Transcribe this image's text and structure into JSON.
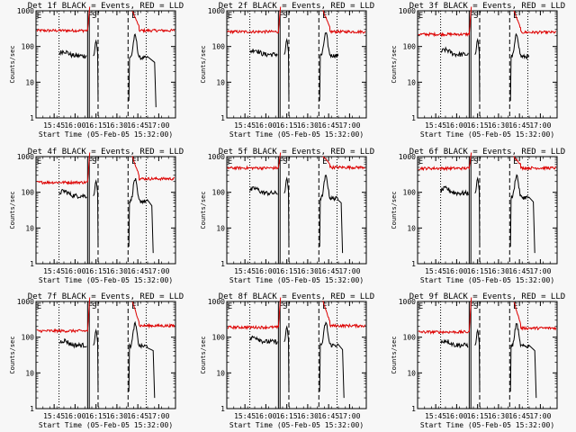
{
  "chart_data": {
    "type": "line",
    "layout": "3x3 grid",
    "x_axis": {
      "label": "Start Time (05-Feb-05 15:32:00)",
      "tick_labels": [
        "15:45",
        "16:00",
        "16:15",
        "16:30",
        "16:45",
        "17:00"
      ],
      "tick_minutes_after_15": [
        45,
        60,
        75,
        90,
        105,
        120
      ],
      "xlim_minutes_after_15": [
        32,
        132
      ]
    },
    "y_axis": {
      "label": "Counts/sec",
      "scale": "log",
      "ylim": [
        1,
        1000
      ],
      "tick_labels": [
        "1",
        "10",
        "100",
        "1000"
      ],
      "tick_values": [
        1,
        10,
        100,
        1000
      ]
    },
    "series_legend": "BLACK = Events, RED = LLD",
    "series_colors": {
      "events": "#000000",
      "lld": "#dd0000"
    },
    "markers": {
      "lines": [
        {
          "minute": 48.5,
          "style": "dotted"
        },
        {
          "minute": 69.0,
          "style": "solid"
        },
        {
          "minute": 70.2,
          "style": "solid"
        },
        {
          "minute": 76.5,
          "style": "dashed"
        },
        {
          "minute": 98.0,
          "style": "dashed"
        },
        {
          "minute": 111.0,
          "style": "dotted"
        }
      ],
      "labels": [
        {
          "text": "E",
          "minute": 32.5
        },
        {
          "text": "F",
          "minute": 69.2
        },
        {
          "text": "S",
          "minute": 72.0
        },
        {
          "text": "E",
          "minute": 100.5
        }
      ]
    },
    "panels": [
      {
        "title": "Det 1f BLACK = Events, RED = LLD",
        "lld_pre": 280,
        "lld_post": 280,
        "ev_pre": 55,
        "ev_post": 60,
        "low": [
          118
        ]
      },
      {
        "title": "Det 2f BLACK = Events, RED = LLD",
        "lld_pre": 260,
        "lld_post": 260,
        "ev_pre": 60,
        "ev_post": 70,
        "low": []
      },
      {
        "title": "Det 3f BLACK = Events, RED = LLD",
        "lld_pre": 220,
        "lld_post": 250,
        "ev_pre": 60,
        "ev_post": 65,
        "low": []
      },
      {
        "title": "Det 4f BLACK = Events, RED = LLD",
        "lld_pre": 190,
        "lld_post": 240,
        "ev_pre": 80,
        "ev_post": 70,
        "low": [
          116
        ]
      },
      {
        "title": "Det 5f BLACK = Events, RED = LLD",
        "lld_pre": 480,
        "lld_post": 500,
        "ev_pre": 95,
        "ev_post": 85,
        "low": [
          115
        ]
      },
      {
        "title": "Det 6f BLACK = Events, RED = LLD",
        "lld_pre": 470,
        "lld_post": 480,
        "ev_pre": 95,
        "ev_post": 90,
        "low": [
          116
        ]
      },
      {
        "title": "Det 7f BLACK = Events, RED = LLD",
        "lld_pre": 150,
        "lld_post": 210,
        "ev_pre": 60,
        "ev_post": 70,
        "low": [
          117
        ]
      },
      {
        "title": "Det 8f BLACK = Events, RED = LLD",
        "lld_pre": 190,
        "lld_post": 210,
        "ev_pre": 75,
        "ev_post": 75,
        "low": [
          116
        ]
      },
      {
        "title": "Det 9f BLACK = Events, RED = LLD",
        "lld_pre": 140,
        "lld_post": 180,
        "ev_pre": 60,
        "ev_post": 70,
        "low": [
          117
        ]
      }
    ]
  }
}
